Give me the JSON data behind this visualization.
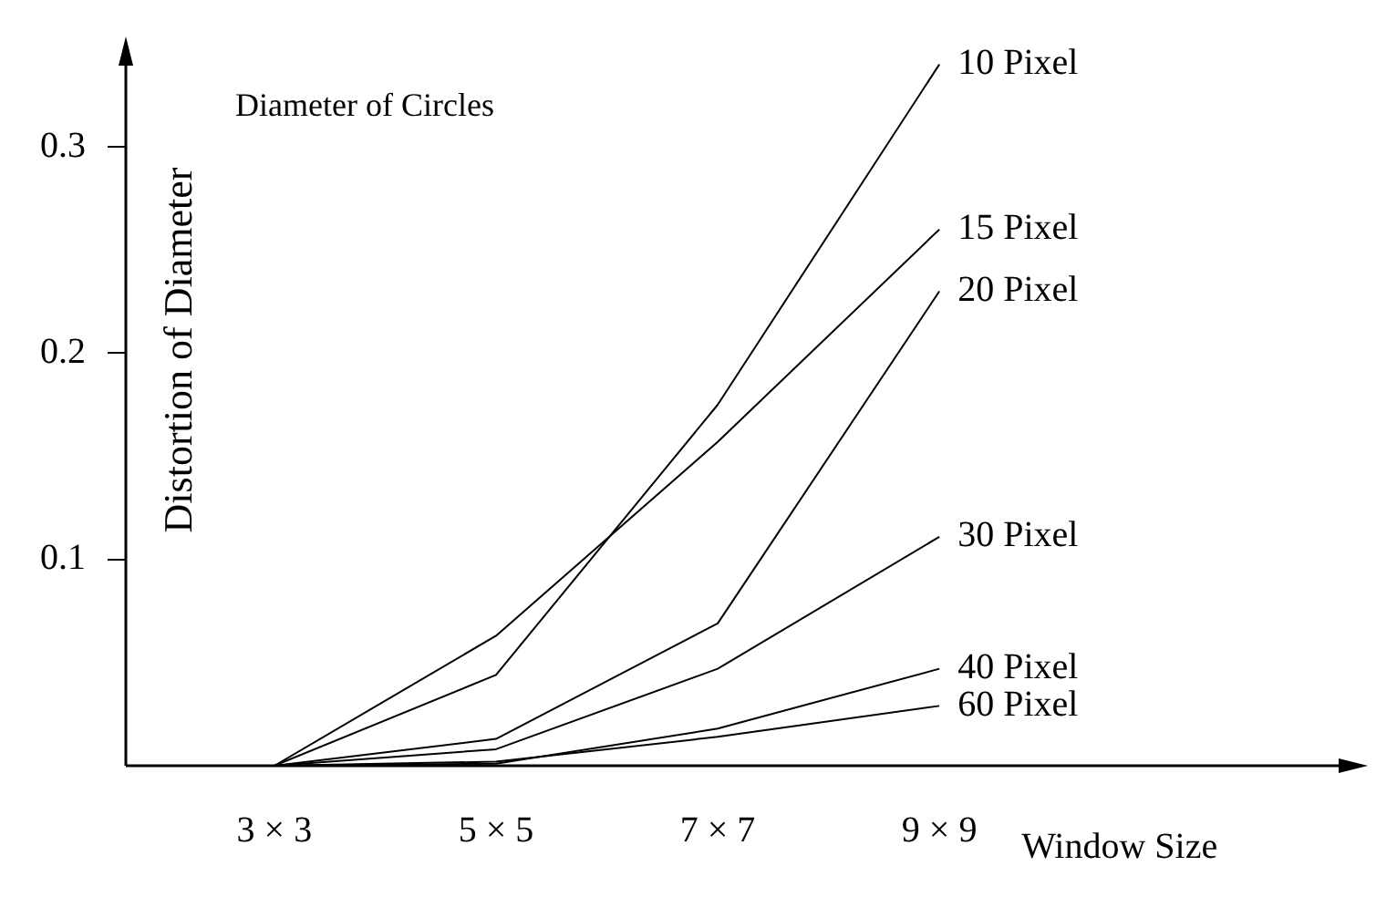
{
  "chart_data": {
    "type": "line",
    "title": "Diameter of Circles",
    "xlabel": "Window Size",
    "ylabel": "Distortion of Diameter",
    "categories": [
      "3 × 3",
      "5 × 5",
      "7 × 7",
      "9 × 9"
    ],
    "series": [
      {
        "name": "10 Pixel",
        "color": "#000000",
        "values": [
          0,
          0.044,
          0.175,
          0.34
        ]
      },
      {
        "name": "15 Pixel",
        "color": "#000000",
        "values": [
          0,
          0.063,
          0.157,
          0.26
        ]
      },
      {
        "name": "20 Pixel",
        "color": "#000000",
        "values": [
          0,
          0.013,
          0.069,
          0.23
        ]
      },
      {
        "name": "30 Pixel",
        "color": "#000000",
        "values": [
          0,
          0.008,
          0.047,
          0.111
        ]
      },
      {
        "name": "40 Pixel",
        "color": "#000000",
        "values": [
          0,
          0.001,
          0.018,
          0.047
        ]
      },
      {
        "name": "60 Pixel",
        "color": "#000000",
        "values": [
          0,
          0.002,
          0.014,
          0.029
        ]
      }
    ],
    "ylim": [
      0,
      0.35
    ],
    "yticks": [
      0.1,
      0.2,
      0.3
    ],
    "grid": false,
    "legend": false,
    "marker": "none",
    "line_style": "solid"
  }
}
